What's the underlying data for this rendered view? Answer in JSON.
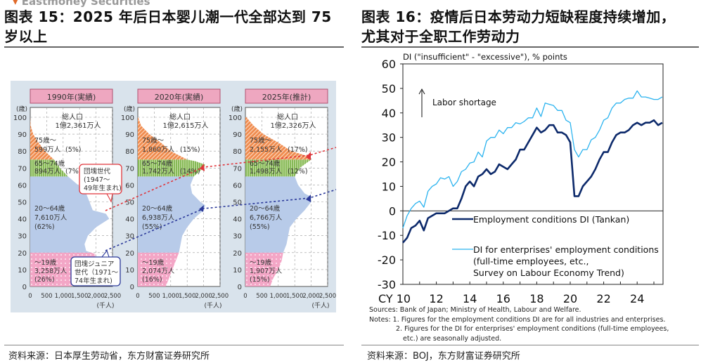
{
  "watermark": "Eastmoney Securities",
  "left": {
    "title_line1": "图表 15：2025 年后日本婴儿潮一代全部达到 75",
    "title_line2": "岁以上",
    "footer": "资料来源：日本厚生劳动省，东方财富证券研究所"
  },
  "right": {
    "title_line1": "图表 16：疫情后日本劳动力短缺程度持续增加，",
    "title_line2": "尤其对于全职工作劳动力",
    "footer": "资料来源：BOJ，东方财富证券研究所"
  },
  "chart_data": [
    {
      "type": "area",
      "title": "Japan population pyramids",
      "ylabel": "(歳)",
      "xlabel": "(千人)",
      "xticks": [
        "0",
        "500",
        "1,000",
        "1,500",
        "2,000",
        "2,500"
      ],
      "yticks": [
        "0",
        "10",
        "20",
        "30",
        "40",
        "50",
        "60",
        "70",
        "80",
        "90",
        "100"
      ],
      "xlim": [
        0,
        2500
      ],
      "ylim": [
        0,
        100
      ],
      "colors": {
        "under19": "#f3a6c6",
        "age20_64": "#b8cbe9",
        "age65_74": "#86b957",
        "age75plus": "#ef8a4c",
        "header_bg": "#eea7c0",
        "panel_bg": "#d9e3ec",
        "arrow_red": "#e0353b",
        "arrow_blue": "#2c3a9a"
      },
      "panels": [
        {
          "header": "1990年(実績)",
          "total_label": "総人口",
          "total_value": "1億2,361万人",
          "groups": [
            {
              "age": "75歳～",
              "value": "599万人",
              "share": "(5%)"
            },
            {
              "age": "65～74歳",
              "value": "894万人",
              "share": "(7%)"
            },
            {
              "age": "20～64歳",
              "value": "7,610万人",
              "share": "(62%)"
            },
            {
              "age": "～19歳",
              "value": "3,258万人",
              "share": "(26%)"
            }
          ],
          "profile": [
            [
              0,
              1250
            ],
            [
              5,
              1300
            ],
            [
              10,
              1500
            ],
            [
              15,
              1900
            ],
            [
              19,
              2000
            ],
            [
              21,
              1700
            ],
            [
              25,
              1650
            ],
            [
              30,
              1750
            ],
            [
              35,
              2000
            ],
            [
              40,
              2400
            ],
            [
              43,
              2300
            ],
            [
              45,
              1900
            ],
            [
              50,
              1800
            ],
            [
              55,
              1700
            ],
            [
              60,
              1450
            ],
            [
              65,
              1150
            ],
            [
              70,
              900
            ],
            [
              75,
              720
            ],
            [
              80,
              450
            ],
            [
              85,
              250
            ],
            [
              90,
              90
            ],
            [
              95,
              15
            ],
            [
              100,
              0
            ]
          ]
        },
        {
          "header": "2020年(実績)",
          "total_label": "総人口",
          "total_value": "1億2,615万人",
          "groups": [
            {
              "age": "75歳～",
              "value": "1,860万人",
              "share": "(15%)"
            },
            {
              "age": "65～74歳",
              "value": "1,742万人",
              "share": "(14%)"
            },
            {
              "age": "20～64歳",
              "value": "6,938万人",
              "share": "(55%)"
            },
            {
              "age": "～19歳",
              "value": "2,074万人",
              "share": "(16%)"
            }
          ],
          "profile": [
            [
              0,
              850
            ],
            [
              5,
              950
            ],
            [
              10,
              1050
            ],
            [
              15,
              1150
            ],
            [
              20,
              1250
            ],
            [
              25,
              1300
            ],
            [
              30,
              1350
            ],
            [
              35,
              1500
            ],
            [
              40,
              1700
            ],
            [
              45,
              2000
            ],
            [
              48,
              2050
            ],
            [
              50,
              1900
            ],
            [
              55,
              1650
            ],
            [
              60,
              1600
            ],
            [
              65,
              1700
            ],
            [
              70,
              2000
            ],
            [
              72,
              2050
            ],
            [
              74,
              1750
            ],
            [
              75,
              1500
            ],
            [
              80,
              1000
            ],
            [
              85,
              700
            ],
            [
              90,
              350
            ],
            [
              95,
              100
            ],
            [
              100,
              10
            ]
          ]
        },
        {
          "header": "2025年(推計)",
          "total_label": "総人口",
          "total_value": "1億2,326万人",
          "groups": [
            {
              "age": "75歳～",
              "value": "2,155万人",
              "share": "(17%)"
            },
            {
              "age": "65～74歳",
              "value": "1,498万人",
              "share": "(12%)"
            },
            {
              "age": "20～64歳",
              "value": "6,766万人",
              "share": "(55%)"
            },
            {
              "age": "～19歳",
              "value": "1,907万人",
              "share": "(15%)"
            }
          ],
          "profile": [
            [
              0,
              750
            ],
            [
              5,
              850
            ],
            [
              10,
              1000
            ],
            [
              15,
              1100
            ],
            [
              20,
              1150
            ],
            [
              25,
              1250
            ],
            [
              30,
              1300
            ],
            [
              35,
              1350
            ],
            [
              40,
              1550
            ],
            [
              45,
              1800
            ],
            [
              50,
              2000
            ],
            [
              53,
              2000
            ],
            [
              55,
              1800
            ],
            [
              60,
              1600
            ],
            [
              65,
              1500
            ],
            [
              70,
              1650
            ],
            [
              75,
              2000
            ],
            [
              77,
              1900
            ],
            [
              80,
              1400
            ],
            [
              85,
              1000
            ],
            [
              90,
              550
            ],
            [
              95,
              250
            ],
            [
              100,
              30
            ]
          ]
        }
      ],
      "callouts": [
        {
          "id": "baby-boomer",
          "lines": [
            "団塊世代",
            "(1947～",
            "49年生まれ)"
          ]
        },
        {
          "id": "baby-boomer-junior",
          "lines": [
            "団塊ジュニア",
            "世代（1971～",
            "74年生まれ)"
          ]
        }
      ]
    },
    {
      "type": "line",
      "ylabel": "DI (\"insufficient\" - \"excessive\"), % points",
      "annotation": "Labor shortage",
      "ylim": [
        -30,
        60
      ],
      "yticks": [
        60,
        50,
        40,
        30,
        20,
        10,
        0,
        -10,
        -20,
        -30
      ],
      "xlim": [
        2010,
        2025.6
      ],
      "xticks": [
        {
          "v": 2010,
          "label": "CY 10"
        },
        {
          "v": 2012,
          "label": "12"
        },
        {
          "v": 2014,
          "label": "14"
        },
        {
          "v": 2016,
          "label": "16"
        },
        {
          "v": 2018,
          "label": "18"
        },
        {
          "v": 2020,
          "label": "20"
        },
        {
          "v": 2022,
          "label": "22"
        },
        {
          "v": 2024,
          "label": "24"
        }
      ],
      "x_start": 2010,
      "x_step": 0.25,
      "series": [
        {
          "name": "Employment conditions DI (Tankan)",
          "legend_lines": [
            "Employment conditions DI (Tankan)"
          ],
          "color": "#0d2a6b",
          "values": [
            -13,
            -11,
            -7,
            -6,
            -4,
            -8,
            -3,
            -2,
            -1,
            -1,
            -1,
            0,
            1,
            1,
            5,
            10,
            12,
            10,
            14,
            15,
            17,
            15,
            16,
            19,
            18,
            17,
            19,
            21,
            25,
            25,
            28,
            31,
            34,
            32,
            33,
            35,
            35,
            32,
            32,
            31,
            28,
            6,
            6,
            10,
            12,
            14,
            17,
            21,
            24,
            24,
            28,
            31,
            32,
            32,
            33,
            35,
            36,
            35,
            36,
            36,
            37,
            35,
            36
          ]
        },
        {
          "name": "DI for enterprises' employment conditions (full-time employees, etc., Survey on Labour Economy Trend)",
          "legend_lines": [
            "DI for enterprises' employment conditions",
            "(full-time employees, etc.,",
            "Survey on Labour Economy Trend)"
          ],
          "color": "#2bb3ef",
          "values": [
            -7,
            -2,
            1,
            3,
            4,
            1.5,
            8,
            10,
            11,
            13.5,
            13,
            14,
            10,
            12,
            16,
            17,
            19.5,
            20,
            24,
            22,
            28.5,
            30,
            30,
            33,
            31.5,
            34,
            34,
            36,
            35.5,
            36.5,
            38,
            38,
            42,
            38.5,
            44,
            43.5,
            43,
            41,
            41,
            37,
            36,
            25,
            22,
            25,
            25,
            29,
            30,
            33,
            37,
            38,
            42,
            44,
            44,
            45.5,
            46,
            46,
            49,
            46.5,
            46.5,
            46,
            45.5,
            45.5,
            46.5
          ]
        }
      ],
      "notes": [
        "Sources: Bank of Japan; Ministry of Health, Labour and Welfare.",
        "Notes: 1. Figures for the employment conditions DI are for all industries and enterprises.",
        "2. Figures for the DI for enterprises' employment conditions (full-time employees,",
        "etc.) are seasonally adjusted."
      ]
    }
  ]
}
